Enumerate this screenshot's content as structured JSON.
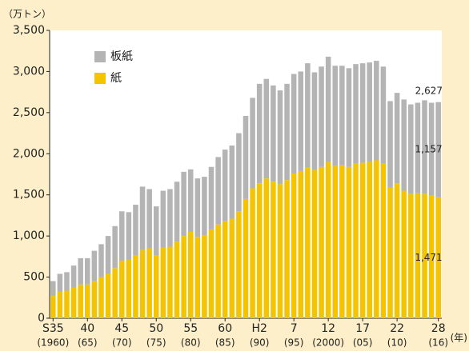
{
  "chart_data": {
    "type": "stacked_bar",
    "y_axis_label": "（万トン）",
    "x_axis_label": "(年)",
    "categories": [
      "S35",
      null,
      null,
      null,
      null,
      "40",
      null,
      null,
      null,
      null,
      "45",
      null,
      null,
      null,
      null,
      "50",
      null,
      null,
      null,
      null,
      "55",
      null,
      null,
      null,
      null,
      "60",
      null,
      null,
      null,
      null,
      "H2",
      null,
      null,
      null,
      null,
      "7",
      null,
      null,
      null,
      null,
      "12",
      null,
      null,
      null,
      null,
      "17",
      null,
      null,
      null,
      null,
      "22",
      null,
      null,
      null,
      null,
      null,
      "28"
    ],
    "category_years": [
      "(1960)",
      null,
      null,
      null,
      null,
      "(65)",
      null,
      null,
      null,
      null,
      "(70)",
      null,
      null,
      null,
      null,
      "(75)",
      null,
      null,
      null,
      null,
      "(80)",
      null,
      null,
      null,
      null,
      "(85)",
      null,
      null,
      null,
      null,
      "(90)",
      null,
      null,
      null,
      null,
      "(95)",
      null,
      null,
      null,
      null,
      "(2000)",
      null,
      null,
      null,
      null,
      "(05)",
      null,
      null,
      null,
      null,
      "(10)",
      null,
      null,
      null,
      null,
      null,
      "(16)"
    ],
    "series": [
      {
        "name": "紙",
        "color": "#f5c400",
        "values": [
          271,
          320,
          335,
          370,
          410,
          410,
          450,
          500,
          540,
          610,
          700,
          710,
          760,
          830,
          850,
          760,
          860,
          870,
          930,
          1000,
          1050,
          990,
          1010,
          1080,
          1140,
          1180,
          1210,
          1300,
          1450,
          1580,
          1640,
          1700,
          1660,
          1630,
          1680,
          1760,
          1790,
          1830,
          1800,
          1840,
          1900,
          1850,
          1860,
          1840,
          1880,
          1890,
          1900,
          1920,
          1880,
          1590,
          1640,
          1550,
          1510,
          1520,
          1510,
          1490,
          1471
        ],
        "value_labels": [
          null,
          null,
          null,
          null,
          null,
          null,
          null,
          null,
          null,
          null,
          null,
          null,
          null,
          null,
          null,
          null,
          null,
          null,
          null,
          null,
          null,
          null,
          null,
          null,
          null,
          null,
          null,
          null,
          null,
          null,
          null,
          null,
          null,
          null,
          null,
          null,
          null,
          null,
          null,
          null,
          null,
          null,
          null,
          null,
          null,
          null,
          null,
          null,
          null,
          null,
          null,
          null,
          null,
          null,
          null,
          null,
          "1,471"
        ]
      },
      {
        "name": "板紙",
        "color": "#b4b4b4",
        "values": [
          180,
          220,
          225,
          270,
          320,
          320,
          370,
          400,
          460,
          510,
          600,
          580,
          620,
          770,
          720,
          600,
          690,
          700,
          730,
          780,
          760,
          710,
          710,
          760,
          820,
          870,
          890,
          950,
          1010,
          1100,
          1210,
          1210,
          1170,
          1140,
          1170,
          1210,
          1210,
          1270,
          1190,
          1220,
          1280,
          1220,
          1210,
          1200,
          1210,
          1210,
          1210,
          1210,
          1180,
          1050,
          1100,
          1110,
          1090,
          1100,
          1140,
          1130,
          1157
        ],
        "value_labels": [
          null,
          null,
          null,
          null,
          null,
          null,
          null,
          null,
          null,
          null,
          null,
          null,
          null,
          null,
          null,
          null,
          null,
          null,
          null,
          null,
          null,
          null,
          null,
          null,
          null,
          null,
          null,
          null,
          null,
          null,
          null,
          null,
          null,
          null,
          null,
          null,
          null,
          null,
          null,
          null,
          null,
          null,
          null,
          null,
          null,
          null,
          null,
          null,
          null,
          null,
          null,
          null,
          null,
          null,
          null,
          null,
          "1,157"
        ]
      }
    ],
    "annotations": [
      {
        "text": "2,627",
        "value": 2627
      }
    ],
    "ylim": [
      0,
      3500
    ],
    "yticks": [
      0,
      500,
      {
        "value": 1000,
        "label": "1,000"
      },
      {
        "value": 1500,
        "label": "1,500"
      },
      {
        "value": 2000,
        "label": "2,000"
      },
      {
        "value": 2500,
        "label": "2,500"
      },
      {
        "value": 3000,
        "label": "3,000"
      },
      {
        "value": 3500,
        "label": "3,500"
      }
    ],
    "legend": "upper left"
  }
}
